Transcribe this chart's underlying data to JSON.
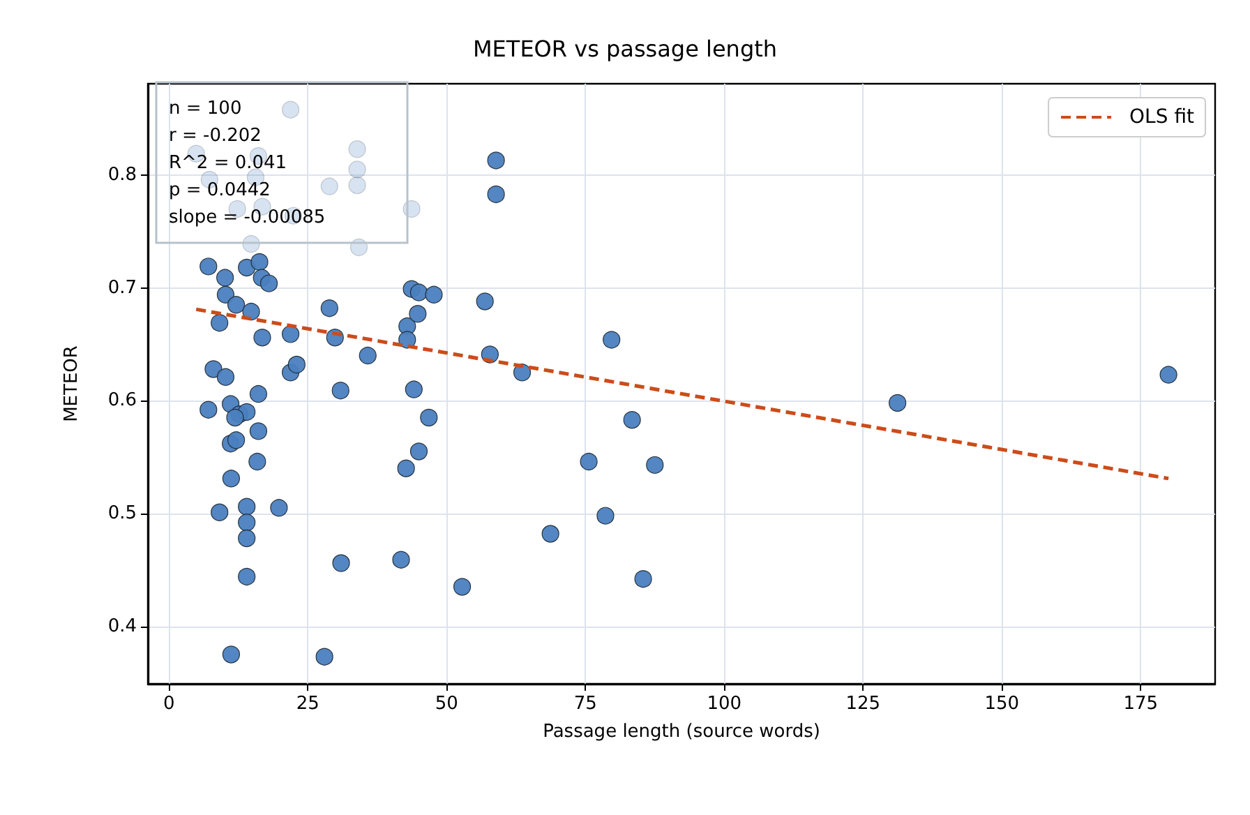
{
  "chart_data": {
    "type": "scatter",
    "title": "METEOR vs passage length",
    "xlabel": "Passage length (source words)",
    "ylabel": "METEOR",
    "xlim": [
      -3.8,
      188.4
    ],
    "xticks": [
      0,
      25,
      50,
      75,
      100,
      125,
      150,
      175
    ],
    "ylim": [
      0.349,
      0.881
    ],
    "yticks": [
      0.4,
      0.5,
      0.6,
      0.7,
      0.8
    ],
    "grid": true,
    "legend": "top right",
    "annotations": [
      "n = 100",
      "r = -0.202",
      "R^2 = 0.041",
      "p = 0.0442",
      "slope = -0.00085"
    ],
    "series": [
      {
        "type": "scatter",
        "marker": "circle",
        "color": "#4a7fbf",
        "x": [
          21.9,
          33.9,
          33.9,
          33.9,
          28.9,
          7.3,
          4.9,
          16.1,
          12.3,
          16.8,
          14.8,
          34.2,
          22.4,
          15.6,
          43.7,
          7.1,
          10.1,
          14.0,
          16.3,
          16.7,
          18.0,
          10.2,
          12.1,
          14.8,
          9.1,
          16.8,
          21.9,
          28.9,
          29.9,
          35.8,
          43.7,
          42.9,
          42.9,
          8.0,
          10.2,
          21.9,
          23.0,
          16.1,
          30.9,
          44.1,
          7.1,
          11.1,
          12.7,
          14.0,
          11.9,
          16.1,
          11.1,
          12.1,
          15.9,
          45.0,
          42.7,
          11.2,
          9.1,
          14.0,
          19.8,
          14.0,
          14.0,
          31.0,
          41.8,
          14.0,
          11.2,
          28.0,
          58.9,
          58.9,
          45.0,
          47.7,
          44.8,
          56.9,
          57.8,
          63.6,
          79.7,
          46.8,
          83.4,
          75.6,
          87.5,
          78.6,
          68.7,
          85.4,
          52.8,
          131.2,
          180.0
        ],
        "values": [
          0.858,
          0.823,
          0.805,
          0.791,
          0.79,
          0.796,
          0.819,
          0.817,
          0.77,
          0.772,
          0.739,
          0.736,
          0.764,
          0.798,
          0.77,
          0.719,
          0.709,
          0.718,
          0.723,
          0.709,
          0.704,
          0.694,
          0.685,
          0.679,
          0.669,
          0.656,
          0.659,
          0.682,
          0.656,
          0.64,
          0.699,
          0.666,
          0.654,
          0.628,
          0.621,
          0.625,
          0.632,
          0.606,
          0.609,
          0.61,
          0.592,
          0.597,
          0.588,
          0.59,
          0.585,
          0.573,
          0.562,
          0.565,
          0.546,
          0.555,
          0.54,
          0.531,
          0.501,
          0.506,
          0.505,
          0.492,
          0.478,
          0.456,
          0.459,
          0.444,
          0.375,
          0.373,
          0.813,
          0.783,
          0.696,
          0.694,
          0.677,
          0.688,
          0.641,
          0.625,
          0.654,
          0.585,
          0.583,
          0.546,
          0.543,
          0.498,
          0.482,
          0.442,
          0.435,
          0.598,
          0.623
        ]
      },
      {
        "type": "line",
        "name": "OLS fit",
        "color": "#cc4c1a",
        "line_style": "dashed",
        "marker": "none",
        "x": [
          4.9,
          180.0
        ],
        "values": [
          0.681,
          0.531
        ]
      }
    ]
  }
}
